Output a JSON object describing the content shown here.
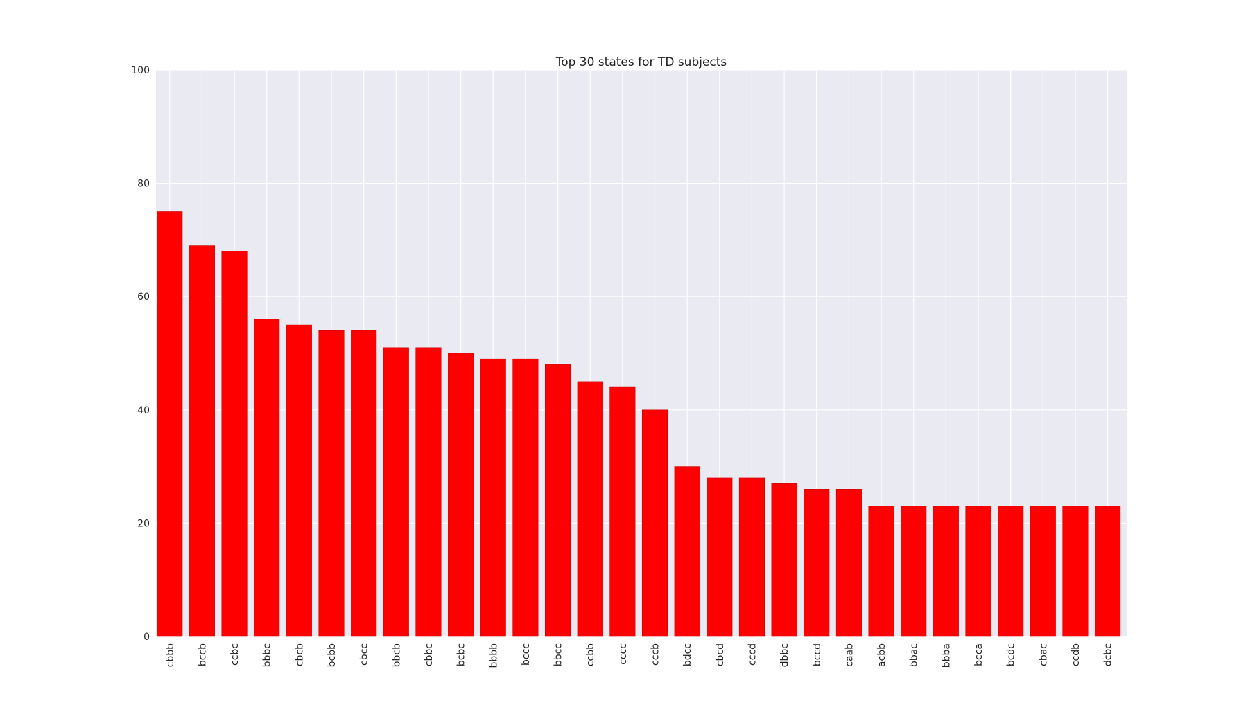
{
  "chart_data": {
    "type": "bar",
    "title": "Top 30 states for TD subjects",
    "xlabel": "",
    "ylabel": "",
    "ylim": [
      0,
      100
    ],
    "yticks": [
      0,
      20,
      40,
      60,
      80,
      100
    ],
    "grid": true,
    "categories": [
      "cbbb",
      "bccb",
      "ccbc",
      "bbbc",
      "cbcb",
      "bcbb",
      "cbcc",
      "bbcb",
      "cbbc",
      "bcbc",
      "bbbb",
      "bccc",
      "bbcc",
      "ccbb",
      "cccc",
      "cccb",
      "bdcc",
      "cbcd",
      "cccd",
      "dbbc",
      "bccd",
      "caab",
      "acbb",
      "bbac",
      "bbba",
      "bcca",
      "bcdc",
      "cbac",
      "ccdb",
      "dcbc"
    ],
    "values": [
      75,
      69,
      68,
      56,
      55,
      54,
      54,
      51,
      51,
      50,
      49,
      49,
      48,
      45,
      44,
      40,
      30,
      28,
      28,
      27,
      26,
      26,
      23,
      23,
      23,
      23,
      23,
      23,
      23,
      23
    ],
    "colors": {
      "bar": "#ff0000",
      "plot_background": "#eaeaf2",
      "grid": "#ffffff",
      "text": "#222222"
    }
  }
}
